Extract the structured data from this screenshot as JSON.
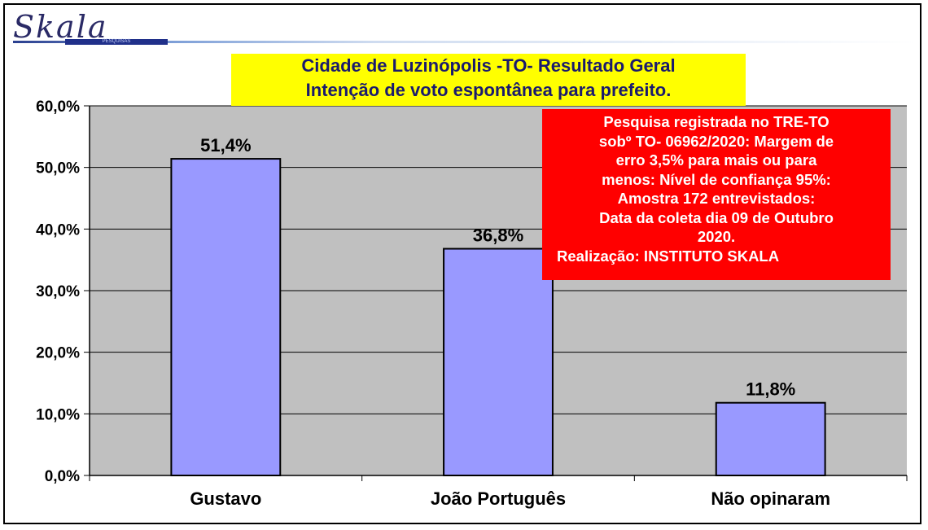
{
  "logo": {
    "text": "Skala",
    "subtext": "PESQUISAS"
  },
  "title": {
    "line1": "Cidade de Luzinópolis -TO- Resultado Geral",
    "line2": "Intenção de voto espontânea para prefeito."
  },
  "note": {
    "lines": [
      "Pesquisa registrada no TRE-TO",
      "sobº TO- 06962/2020: Margem de",
      "erro 3,5% para mais ou para",
      "menos: Nível de confiança 95%:",
      "Amostra 172 entrevistados:",
      "Data da coleta dia 09  de Outubro",
      "2020.",
      "Realização: INSTITUTO SKALA"
    ]
  },
  "colors": {
    "plot_background": "#c0c0c0",
    "bar_fill": "#9999ff",
    "note_background": "#ff0000",
    "title_background": "#ffff00",
    "title_text": "#1a1a6e"
  },
  "chart_data": {
    "type": "bar",
    "categories": [
      "Gustavo",
      "João Português",
      "Não opinaram"
    ],
    "values": [
      51.4,
      36.8,
      11.8
    ],
    "value_labels": [
      "51,4%",
      "36,8%",
      "11,8%"
    ],
    "yticks": [
      0,
      10,
      20,
      30,
      40,
      50,
      60
    ],
    "ytick_labels": [
      "0,0%",
      "10,0%",
      "20,0%",
      "30,0%",
      "40,0%",
      "50,0%",
      "60,0%"
    ],
    "ylim": [
      0,
      60
    ],
    "grid": true,
    "legend": "none"
  }
}
